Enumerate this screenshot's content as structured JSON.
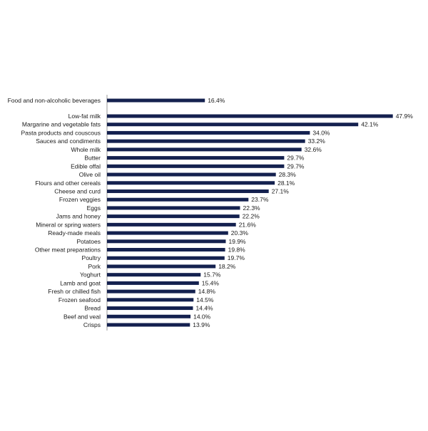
{
  "chart_data": {
    "type": "bar",
    "orientation": "horizontal",
    "title": "",
    "xlabel": "",
    "ylabel": "",
    "value_suffix": "%",
    "xlim": [
      0,
      50
    ],
    "grid": false,
    "legend": "none",
    "bar_color": "#14214f",
    "axis_color": "#7f7f7f",
    "categories": [
      "Food and non-alcoholic beverages",
      "Low-fat milk",
      "Margarine and vegetable fats",
      "Pasta products and couscous",
      "Sauces and condiments",
      "Whole milk",
      "Butter",
      "Edible offal",
      "Olive oil",
      "Flours and other cereals",
      "Cheese and curd",
      "Frozen veggies",
      "Eggs",
      "Jams and honey",
      "Mineral or spring waters",
      "Ready-made meals",
      "Potatoes",
      "Other meat preparations",
      "Poultry",
      "Pork",
      "Yoghurt",
      "Lamb and goat",
      "Fresh or chilled fish",
      "Frozen seafood",
      "Bread",
      "Beef and veal",
      "Crisps"
    ],
    "values": [
      16.4,
      47.9,
      42.1,
      34.0,
      33.2,
      32.6,
      29.7,
      29.7,
      28.3,
      28.1,
      27.1,
      23.7,
      22.3,
      22.2,
      21.6,
      20.3,
      19.9,
      19.8,
      19.7,
      18.2,
      15.7,
      15.4,
      14.8,
      14.5,
      14.4,
      14.0,
      13.9
    ],
    "data_labels": [
      "16.4%",
      "47.9%",
      "42.1%",
      "34.0%",
      "33.2%",
      "32.6%",
      "29.7%",
      "29.7%",
      "28.3%",
      "28.1%",
      "27.1%",
      "23.7%",
      "22.3%",
      "22.2%",
      "21.6%",
      "20.3%",
      "19.9%",
      "19.8%",
      "19.7%",
      "18.2%",
      "15.7%",
      "15.4%",
      "14.8%",
      "14.5%",
      "14.4%",
      "14.0%",
      "13.9%"
    ]
  }
}
